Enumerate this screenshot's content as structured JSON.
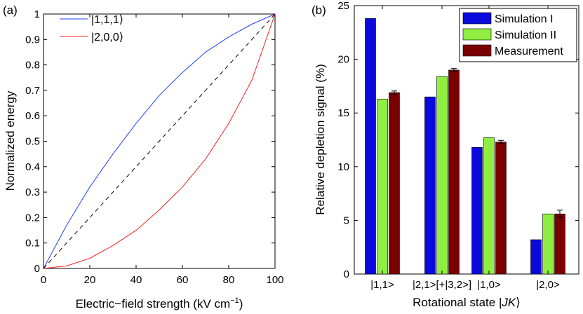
{
  "figure": {
    "width": 831,
    "height": 443
  },
  "chart_data": [
    {
      "type": "line",
      "panel_label": "(a)",
      "title": "",
      "xlabel": "Electric−field strength (kV cm",
      "xlabel_sup": "−1",
      "xlabel_end": ")",
      "ylabel": "Normalized energy",
      "xlim": [
        0,
        100
      ],
      "ylim": [
        0,
        1
      ],
      "xticks": [
        0,
        20,
        40,
        60,
        80,
        100
      ],
      "yticks": [
        0,
        0.1,
        0.2,
        0.3,
        0.4,
        0.5,
        0.6,
        0.7,
        0.8,
        0.9,
        1
      ],
      "ytick_labels": [
        "0",
        "0.1",
        "0.2",
        "0.3",
        "0.4",
        "0.5",
        "0.6",
        "0.7",
        "0.8",
        "0.9",
        "1"
      ],
      "legend_position": "top-left",
      "series": [
        {
          "name": "|1,1,1⟩",
          "color": "#1f3fff",
          "style": "solid",
          "x": [
            0,
            10,
            20,
            30,
            40,
            50,
            60,
            70,
            80,
            90,
            100
          ],
          "y": [
            0,
            0.17,
            0.32,
            0.45,
            0.57,
            0.68,
            0.77,
            0.85,
            0.91,
            0.96,
            1.0
          ]
        },
        {
          "name": "|2,0,0⟩",
          "color": "#ff2020",
          "style": "solid",
          "x": [
            0,
            10,
            20,
            30,
            40,
            50,
            60,
            70,
            80,
            90,
            100
          ],
          "y": [
            0,
            0.01,
            0.04,
            0.09,
            0.15,
            0.23,
            0.32,
            0.43,
            0.57,
            0.74,
            1.0
          ]
        },
        {
          "name": "",
          "color": "#000000",
          "style": "dashed",
          "x": [
            0,
            100
          ],
          "y": [
            0,
            1
          ]
        }
      ]
    },
    {
      "type": "bar",
      "panel_label": "(b)",
      "title": "",
      "xlabel": "Rotational state |",
      "xlabel_italic": "JK",
      "xlabel_end": "⟩",
      "ylabel": "Relative depletion signal (%)",
      "ylim": [
        0,
        25
      ],
      "yticks": [
        0,
        5,
        10,
        15,
        20,
        25
      ],
      "categories": [
        "|1,1>",
        "|2,1>[+|3,2>]",
        "|1,0>",
        "|2,0>"
      ],
      "legend_position": "top-right",
      "series": [
        {
          "name": "Simulation I",
          "color": "#0a0adc",
          "values": [
            23.8,
            16.5,
            11.8,
            3.2
          ]
        },
        {
          "name": "Simulation II",
          "color": "#90ee40",
          "values": [
            16.3,
            18.4,
            12.7,
            5.6
          ]
        },
        {
          "name": "Measurement",
          "color": "#7a0000",
          "values": [
            16.9,
            19.0,
            12.3,
            5.6
          ],
          "errors": [
            0.15,
            0.15,
            0.15,
            0.35
          ]
        }
      ]
    }
  ]
}
